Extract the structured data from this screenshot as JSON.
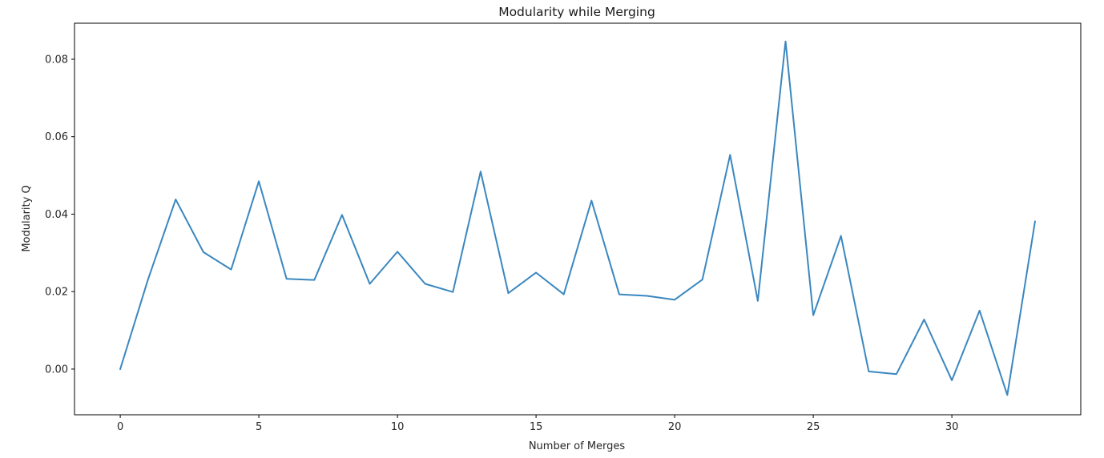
{
  "chart_data": {
    "type": "line",
    "title": "Modularity while Merging",
    "xlabel": "Number of Merges",
    "ylabel": "Modularity Q",
    "xlim": [
      -1.65,
      34.65
    ],
    "ylim": [
      -0.0118,
      0.0893
    ],
    "xticks": [
      0,
      5,
      10,
      15,
      20,
      25,
      30
    ],
    "xtick_labels": [
      "0",
      "5",
      "10",
      "15",
      "20",
      "25",
      "30"
    ],
    "yticks": [
      0.0,
      0.02,
      0.04,
      0.06,
      0.08
    ],
    "ytick_labels": [
      "0.00",
      "0.02",
      "0.04",
      "0.06",
      "0.08"
    ],
    "grid": false,
    "legend": "none",
    "series": [
      {
        "color": "#3a87bf",
        "x": [
          0,
          1,
          2,
          3,
          4,
          5,
          6,
          7,
          8,
          9,
          10,
          11,
          12,
          13,
          14,
          15,
          16,
          17,
          18,
          19,
          20,
          21,
          22,
          23,
          24,
          25,
          26,
          27,
          28,
          29,
          30,
          31,
          32,
          33
        ],
        "y": [
          0.0,
          0.0231,
          0.0438,
          0.0302,
          0.0257,
          0.0485,
          0.0233,
          0.023,
          0.0398,
          0.022,
          0.0303,
          0.022,
          0.0199,
          0.051,
          0.0196,
          0.0249,
          0.0193,
          0.0435,
          0.0193,
          0.0189,
          0.0179,
          0.0231,
          0.0553,
          0.0176,
          0.0846,
          0.0139,
          0.0344,
          -0.0006,
          -0.0013,
          0.0128,
          -0.0029,
          0.0151,
          -0.0067,
          0.0381
        ]
      }
    ]
  }
}
